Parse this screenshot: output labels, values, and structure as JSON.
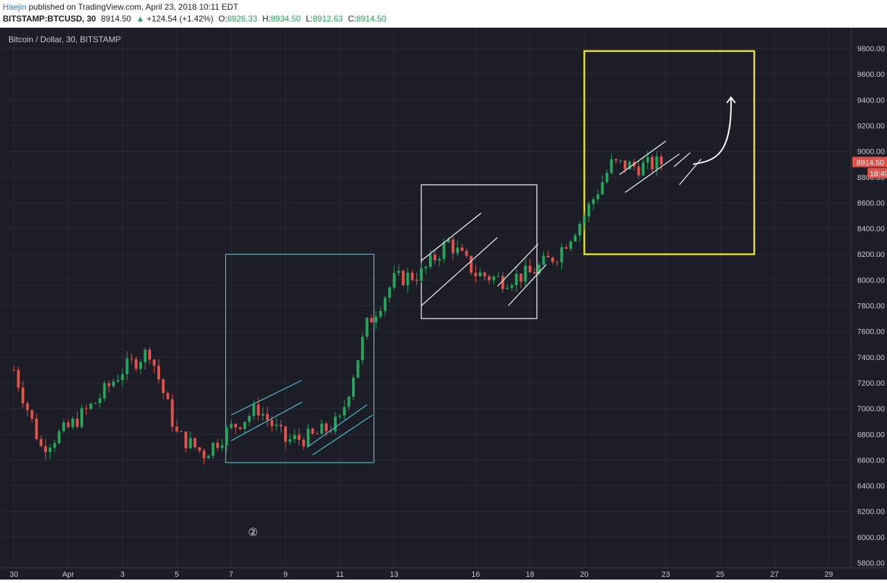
{
  "header": {
    "author": "Haejin",
    "published": "published on TradingView.com, April 23, 2018 10:11 EDT",
    "symbol": "BITSTAMP:BTCUSD, 30",
    "last": "8914.50",
    "change": "+124.54 (+1.42%)",
    "o_label": "O:",
    "o": "8926.33",
    "h_label": "H:",
    "h": "8934.50",
    "l_label": "L:",
    "l": "8912.63",
    "c_label": "C:",
    "c": "8914.50"
  },
  "chart_data": {
    "type": "line",
    "title": "Bitcoin / Dollar, 30, BITSTAMP",
    "x_tick_labels": [
      "30",
      "Apr",
      "3",
      "5",
      "7",
      "9",
      "11",
      "13",
      "16",
      "18",
      "20",
      "23",
      "25",
      "27",
      "29"
    ],
    "y_tick_labels": [
      "5800.00",
      "6000.00",
      "6200.00",
      "6400.00",
      "6600.00",
      "6800.00",
      "7000.00",
      "7200.00",
      "7400.00",
      "7600.00",
      "7800.00",
      "8000.00",
      "8200.00",
      "8400.00",
      "8600.00",
      "8800.00",
      "9000.00",
      "9200.00",
      "9400.00",
      "9600.00",
      "9800.00"
    ],
    "ylim": [
      5800,
      9800
    ],
    "price_label": "8914.50",
    "time_label": "18:49",
    "series": [
      {
        "values_by_day": [
          {
            "x": "Mar 30",
            "y": 7300
          },
          {
            "x": "Mar 31",
            "y": 6700
          },
          {
            "x": "Apr 1",
            "y": 6850
          },
          {
            "x": "Apr 2",
            "y": 7050
          },
          {
            "x": "Apr 3",
            "y": 7300
          },
          {
            "x": "Apr 4",
            "y": 7450
          },
          {
            "x": "Apr 5",
            "y": 6800
          },
          {
            "x": "Apr 6",
            "y": 6650
          },
          {
            "x": "Apr 7",
            "y": 6850
          },
          {
            "x": "Apr 8",
            "y": 7000
          },
          {
            "x": "Apr 9",
            "y": 6750
          },
          {
            "x": "Apr 10",
            "y": 6780
          },
          {
            "x": "Apr 11",
            "y": 6900
          },
          {
            "x": "Apr 12",
            "y": 7650
          },
          {
            "x": "Apr 13",
            "y": 8000
          },
          {
            "x": "Apr 14",
            "y": 8050
          },
          {
            "x": "Apr 15",
            "y": 8300
          },
          {
            "x": "Apr 16",
            "y": 8050
          },
          {
            "x": "Apr 17",
            "y": 8000
          },
          {
            "x": "Apr 18",
            "y": 8050
          },
          {
            "x": "Apr 19",
            "y": 8200
          },
          {
            "x": "Apr 20",
            "y": 8500
          },
          {
            "x": "Apr 21",
            "y": 8900
          },
          {
            "x": "Apr 22",
            "y": 8880
          },
          {
            "x": "Apr 23",
            "y": 8914.5
          }
        ]
      }
    ],
    "annotations": [
      {
        "type": "rectangle",
        "color": "#4fc3d0",
        "x_from": "Apr 7",
        "x_to": "Apr 12",
        "y_from": 6580,
        "y_to": 8200
      },
      {
        "type": "rectangle",
        "color": "#ffffff",
        "x_from": "Apr 14",
        "x_to": "Apr 18",
        "y_from": 7700,
        "y_to": 8740
      },
      {
        "type": "rectangle",
        "color": "#e8e03a",
        "x_from": "Apr 20",
        "x_to": "Apr 26",
        "y_from": 8200,
        "y_to": 9780
      },
      {
        "type": "circled_label",
        "text": "②"
      },
      {
        "type": "arrow",
        "color": "#ffffff",
        "direction": "up"
      }
    ],
    "colors": {
      "up": "#26a65b",
      "down": "#e0524a",
      "background": "#1c1d26",
      "price_tag": "#e0524a"
    }
  }
}
